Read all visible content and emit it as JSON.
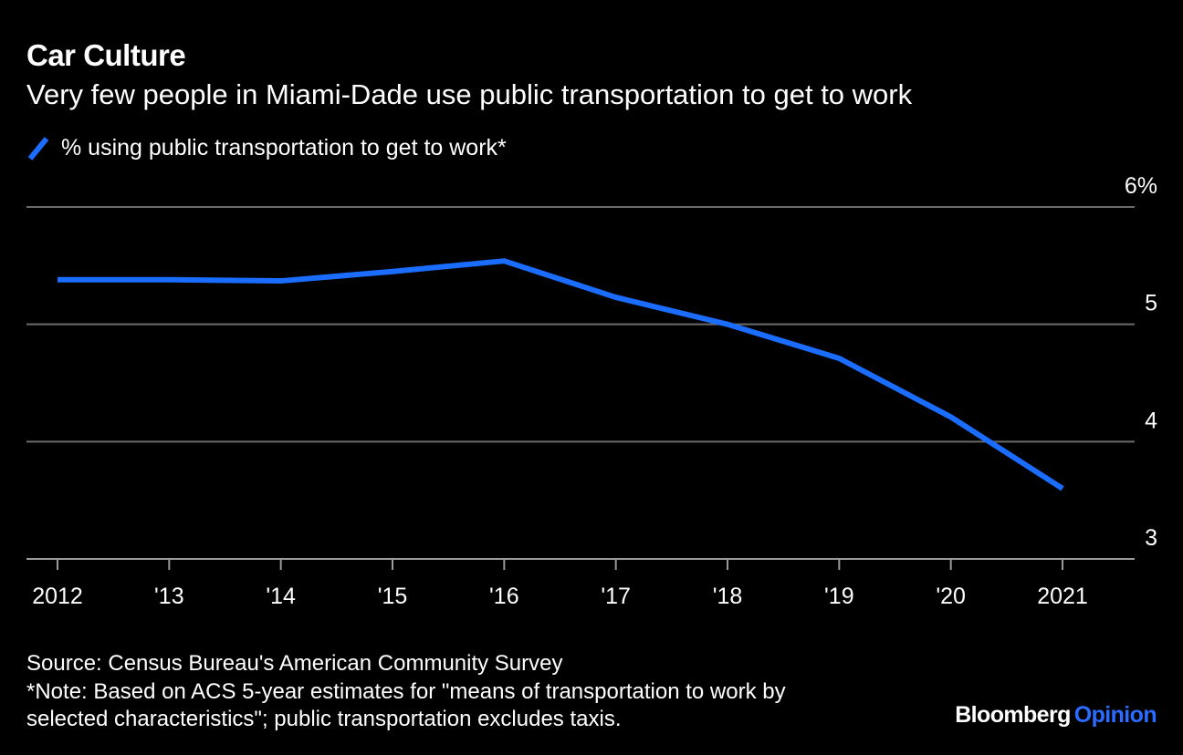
{
  "title": "Car Culture",
  "subtitle": "Very few people in Miami-Dade use public transportation to get to work",
  "legend": {
    "label": "% using public transportation to get to work*"
  },
  "colors": {
    "background": "#000000",
    "line": "#1a6dff",
    "grid": "#6b6b6b",
    "text": "#ffffff",
    "brand_accent": "#2b6bff"
  },
  "chart_data": {
    "type": "line",
    "x": [
      "2012",
      "'13",
      "'14",
      "'15",
      "'16",
      "'17",
      "'18",
      "'19",
      "'20",
      "2021"
    ],
    "series": [
      {
        "name": "% using public transportation to get to work*",
        "values": [
          5.38,
          5.38,
          5.37,
          5.45,
          5.54,
          5.23,
          5.0,
          4.71,
          4.21,
          3.6
        ]
      }
    ],
    "ylim": [
      3,
      6
    ],
    "yticks": [
      "3",
      "4",
      "5",
      "6%"
    ],
    "yaxis_position": "right",
    "grid": true
  },
  "footer": {
    "source": "Source: Census Bureau's American Community Survey",
    "note_line1": "*Note: Based on ACS 5-year estimates for \"means of transportation to work by",
    "note_line2": "selected characteristics\"; public transportation excludes taxis."
  },
  "brand": {
    "part1": "Bloomberg",
    "part2": "Opinion"
  }
}
